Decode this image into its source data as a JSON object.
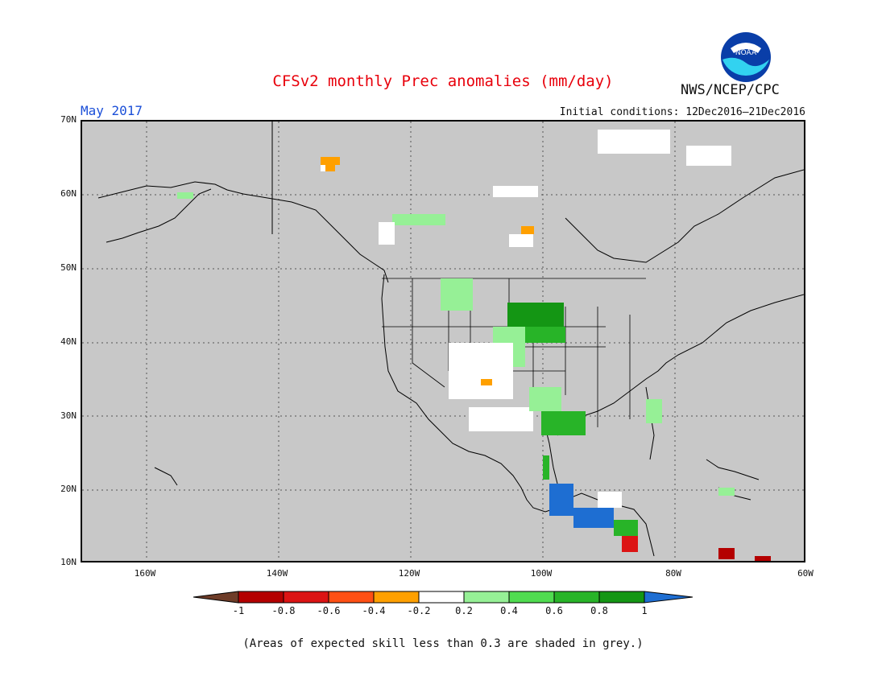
{
  "header": {
    "title": "CFSv2 monthly Prec anomalies (mm/day)",
    "month": "May 2017",
    "initial_conditions": "Initial conditions: 12Dec2016–21Dec2016",
    "agency": "NWS/NCEP/CPC",
    "logo_text": "NOAA"
  },
  "map": {
    "lat_labels": [
      "70N",
      "60N",
      "50N",
      "40N",
      "30N",
      "20N",
      "10N"
    ],
    "lon_labels": [
      "160W",
      "140W",
      "120W",
      "100W",
      "80W",
      "60W"
    ],
    "background_color": "#c8c8c8",
    "grid": true,
    "anomaly_regions": [
      {
        "name": "Northern Plains",
        "category": "0.6 to 0.8",
        "color": "#28a028"
      },
      {
        "name": "Central Plains",
        "category": "0.2 to 0.6",
        "color": "#96e696"
      },
      {
        "name": "Texas Gulf Coast",
        "category": "0.4 to 0.8",
        "color": "#3cc83c"
      },
      {
        "name": "Southern Mexico",
        "category": "> 1",
        "color": "#1e6ed2"
      },
      {
        "name": "Central America Pacific",
        "category": "-0.6 to -1",
        "color": "#d21e1e"
      },
      {
        "name": "Southwest US",
        "category": "-0.2 to 0.2",
        "color": "#ffffff"
      },
      {
        "name": "Yukon",
        "category": "-0.4 to -0.2",
        "color": "#f0a000"
      }
    ]
  },
  "colorbar": {
    "labels": [
      "-1",
      "-0.8",
      "-0.6",
      "-0.4",
      "-0.2",
      "0.2",
      "0.4",
      "0.6",
      "0.8",
      "1"
    ],
    "colors": [
      "#6e3c28",
      "#b40000",
      "#dc1414",
      "#ff5014",
      "#ffa000",
      "#ffffff",
      "#96f096",
      "#50dc50",
      "#28b428",
      "#149614",
      "#1e6ed2"
    ]
  },
  "footnote": "(Areas of expected skill less than 0.3 are shaded in grey.)"
}
